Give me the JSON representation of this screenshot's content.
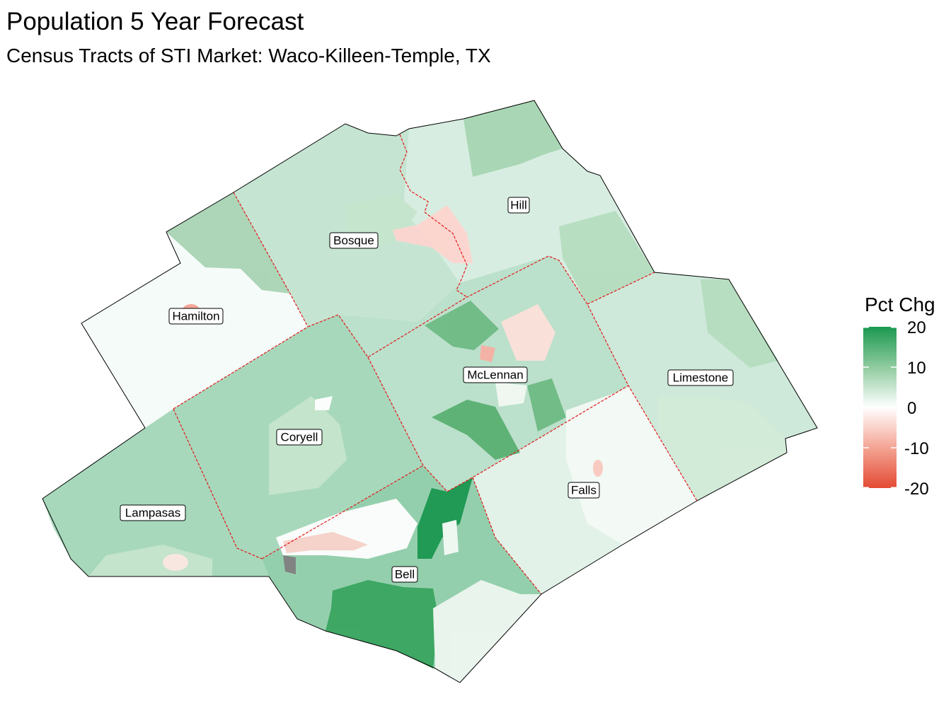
{
  "header": {
    "title": "Population 5 Year Forecast",
    "subtitle": "Census Tracts of STI Market: Waco-Killeen-Temple, TX"
  },
  "colors": {
    "high": "#1a9850",
    "mid": "#ffffff",
    "low": "#e34a33",
    "na": "#808080",
    "county_border": "#e41a1c",
    "outline": "#000000"
  },
  "legend": {
    "title": "Pct Chg",
    "ticks": [
      "20",
      "10",
      "0",
      "-10",
      "-20"
    ],
    "tick_values": [
      20,
      10,
      0,
      -10,
      -20
    ],
    "range": [
      -20,
      20
    ]
  },
  "counties": [
    {
      "name": "Bosque",
      "pct_chg": 6
    },
    {
      "name": "Hill",
      "pct_chg": 4
    },
    {
      "name": "Hamilton",
      "pct_chg": 1
    },
    {
      "name": "Coryell",
      "pct_chg": 9
    },
    {
      "name": "McLennan",
      "pct_chg": 7
    },
    {
      "name": "Limestone",
      "pct_chg": 5
    },
    {
      "name": "Lampasas",
      "pct_chg": 9
    },
    {
      "name": "Falls",
      "pct_chg": 3
    },
    {
      "name": "Bell",
      "pct_chg": 11
    }
  ]
}
